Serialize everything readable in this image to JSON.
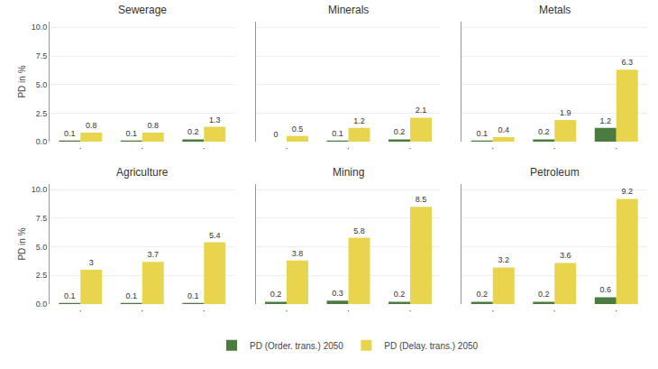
{
  "chart_data": [
    {
      "type": "bar",
      "title": "Sewerage",
      "categories": [
        "·",
        "·",
        "·"
      ],
      "series": [
        {
          "name": "PD (Order. trans.) 2050",
          "color": "#4a7c3f",
          "values": [
            0.1,
            0.1,
            0.2
          ]
        },
        {
          "name": "PD (Delay. trans.) 2050",
          "color": "#e8d44d",
          "values": [
            0.8,
            0.8,
            1.3
          ]
        }
      ],
      "ylabel": "PD in %",
      "ylim": [
        0,
        10.5
      ],
      "yticks": [
        {
          "value": 0,
          "label": "0.0"
        },
        2.5,
        {
          "value": 5,
          "label": "5.0"
        },
        7.5,
        {
          "value": 10,
          "label": "10.0"
        }
      ],
      "grid": true,
      "data_labels": true,
      "legend": "bottom"
    },
    {
      "type": "bar",
      "title": "Minerals",
      "categories": [
        "·",
        "·",
        "·"
      ],
      "series": [
        {
          "name": "PD (Order. trans.) 2050",
          "color": "#4a7c3f",
          "values": [
            0.0,
            0.1,
            0.2
          ]
        },
        {
          "name": "PD (Delay. trans.) 2050",
          "color": "#e8d44d",
          "values": [
            0.5,
            1.2,
            2.1
          ]
        }
      ],
      "ylim": [
        0,
        10.5
      ],
      "yticks": [
        {
          "value": 0,
          "label": "0.0"
        },
        2.5,
        {
          "value": 5,
          "label": "5.0"
        },
        7.5,
        {
          "value": 10,
          "label": "10.0"
        }
      ],
      "grid": true,
      "data_labels": true,
      "legend": "bottom",
      "tick_labels": "x"
    },
    {
      "type": "bar",
      "title": "Metals",
      "categories": [
        "·",
        "·",
        "·"
      ],
      "series": [
        {
          "name": "PD (Order. trans.) 2050",
          "color": "#4a7c3f",
          "values": [
            0.1,
            0.2,
            1.2
          ]
        },
        {
          "name": "PD (Delay. trans.) 2050",
          "color": "#e8d44d",
          "values": [
            0.4,
            1.9,
            6.3
          ]
        }
      ],
      "ylim": [
        0,
        10.5
      ],
      "yticks": [
        {
          "value": 0,
          "label": "0.0"
        },
        2.5,
        {
          "value": 5,
          "label": "5.0"
        },
        7.5,
        {
          "value": 10,
          "label": "10.0"
        }
      ],
      "grid": true,
      "data_labels": true,
      "legend": "bottom",
      "tick_labels": "x"
    },
    {
      "type": "bar",
      "title": "Agriculture",
      "categories": [
        "·",
        "·",
        "·"
      ],
      "series": [
        {
          "name": "PD (Order. trans.) 2050",
          "color": "#4a7c3f",
          "values": [
            0.1,
            0.1,
            0.1
          ]
        },
        {
          "name": "PD (Delay. trans.) 2050",
          "color": "#e8d44d",
          "values": [
            3.0,
            3.7,
            5.4
          ]
        }
      ],
      "ylabel": "PD in %",
      "ylim": [
        0,
        10.5
      ],
      "yticks": [
        {
          "value": 0,
          "label": "0.0"
        },
        2.5,
        {
          "value": 5,
          "label": "5.0"
        },
        7.5,
        {
          "value": 10,
          "label": "10.0"
        }
      ],
      "grid": true,
      "data_labels": true,
      "legend": "bottom"
    },
    {
      "type": "bar",
      "title": "Mining",
      "categories": [
        "·",
        "·",
        "·"
      ],
      "series": [
        {
          "name": "PD (Order. trans.) 2050",
          "color": "#4a7c3f",
          "values": [
            0.2,
            0.3,
            0.2
          ]
        },
        {
          "name": "PD (Delay. trans.) 2050",
          "color": "#e8d44d",
          "values": [
            3.8,
            5.8,
            8.5
          ]
        }
      ],
      "ylim": [
        0,
        10.5
      ],
      "yticks": [
        {
          "value": 0,
          "label": "0.0"
        },
        2.5,
        {
          "value": 5,
          "label": "5.0"
        },
        7.5,
        {
          "value": 10,
          "label": "10.0"
        }
      ],
      "grid": true,
      "data_labels": true,
      "legend": "bottom",
      "tick_labels": "x"
    },
    {
      "type": "bar",
      "title": "Petroleum",
      "categories": [
        "·",
        "·",
        "·"
      ],
      "series": [
        {
          "name": "PD (Order. trans.) 2050",
          "color": "#4a7c3f",
          "values": [
            0.2,
            0.2,
            0.6
          ]
        },
        {
          "name": "PD (Delay. trans.) 2050",
          "color": "#e8d44d",
          "values": [
            3.2,
            3.6,
            9.2
          ]
        }
      ],
      "ylim": [
        0,
        10.5
      ],
      "yticks": [
        {
          "value": 0,
          "label": "0.0"
        },
        2.5,
        {
          "value": 5,
          "label": "5.0"
        },
        7.5,
        {
          "value": 10,
          "label": "10.0"
        }
      ],
      "grid": true,
      "data_labels": true,
      "legend": "bottom",
      "tick_labels": "x"
    }
  ]
}
